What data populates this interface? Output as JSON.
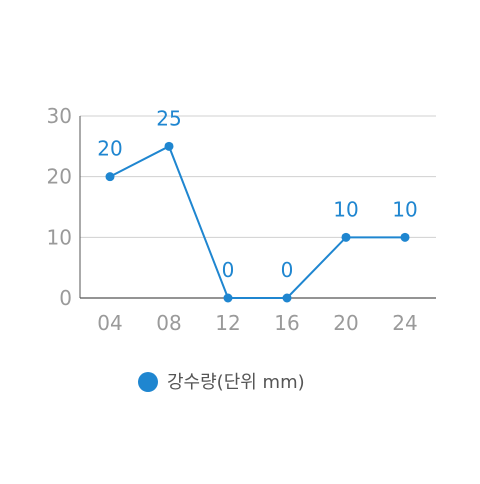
{
  "chart_data": {
    "type": "line",
    "x": [
      "04",
      "08",
      "12",
      "16",
      "20",
      "24"
    ],
    "values": [
      20,
      25,
      0,
      0,
      10,
      10
    ],
    "data_labels": [
      "20",
      "25",
      "0",
      "0",
      "10",
      "10"
    ],
    "y_ticks": [
      "0",
      "10",
      "20",
      "30"
    ],
    "ylim": [
      0,
      30
    ],
    "grid": true,
    "legend_placement": "bottom",
    "series": [
      {
        "name": "강수량(단위 mm)",
        "values": [
          20,
          25,
          0,
          0,
          10,
          10
        ]
      }
    ],
    "colors": {
      "series": "#1f86d0",
      "grid": "#d0d0d0",
      "axis": "#555555",
      "tick": "#9a9a9a"
    }
  }
}
